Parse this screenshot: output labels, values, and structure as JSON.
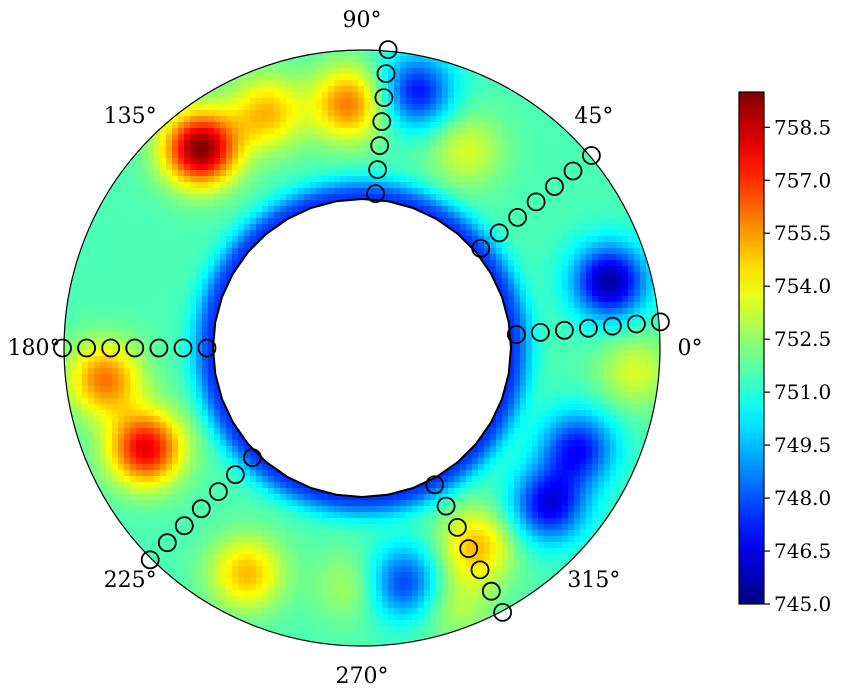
{
  "chart_data": {
    "type": "heatmap",
    "subtype": "polar-annulus-contour",
    "colormap": "jet",
    "title": "",
    "angular_ticks": [
      {
        "angle": 0,
        "label": "0°"
      },
      {
        "angle": 45,
        "label": "45°"
      },
      {
        "angle": 90,
        "label": "90°"
      },
      {
        "angle": 135,
        "label": "135°"
      },
      {
        "angle": 180,
        "label": "180°"
      },
      {
        "angle": 225,
        "label": "225°"
      },
      {
        "angle": 270,
        "label": "270°"
      },
      {
        "angle": 315,
        "label": "315°"
      }
    ],
    "colorbar": {
      "min": 745.0,
      "max": 759.5,
      "ticks": [
        {
          "value": 745.0,
          "label": "745.0"
        },
        {
          "value": 746.5,
          "label": "746.5"
        },
        {
          "value": 748.0,
          "label": "748.0"
        },
        {
          "value": 749.5,
          "label": "749.5"
        },
        {
          "value": 751.0,
          "label": "751.0"
        },
        {
          "value": 752.5,
          "label": "752.5"
        },
        {
          "value": 754.0,
          "label": "754.0"
        },
        {
          "value": 755.5,
          "label": "755.5"
        },
        {
          "value": 757.0,
          "label": "757.0"
        },
        {
          "value": 758.5,
          "label": "758.5"
        }
      ]
    },
    "baseline_value": 751.5,
    "hotspots": [
      {
        "theta": 129,
        "r": 0.86,
        "value": 759.5
      },
      {
        "theta": 205,
        "r": 0.8,
        "value": 758.0
      },
      {
        "theta": 187,
        "r": 0.87,
        "value": 756.0
      },
      {
        "theta": 93,
        "r": 0.82,
        "value": 756.0
      },
      {
        "theta": 112,
        "r": 0.85,
        "value": 755.0
      },
      {
        "theta": 243,
        "r": 0.85,
        "value": 755.0
      },
      {
        "theta": 300,
        "r": 0.77,
        "value": 755.0
      },
      {
        "theta": 62,
        "r": 0.75,
        "value": 753.5
      },
      {
        "theta": 355,
        "r": 0.92,
        "value": 753.5
      },
      {
        "theta": 268,
        "r": 0.8,
        "value": 753.0
      },
      {
        "theta": 290,
        "r": 0.92,
        "value": 753.0
      }
    ],
    "coldspots": [
      {
        "theta": 78,
        "r": 0.88,
        "value": 747.0
      },
      {
        "theta": 15,
        "r": 0.86,
        "value": 745.5
      },
      {
        "theta": 335,
        "r": 0.8,
        "value": 747.0
      },
      {
        "theta": 320,
        "r": 0.82,
        "value": 746.5
      },
      {
        "theta": 280,
        "r": 0.8,
        "value": 747.5
      }
    ],
    "sensor_lines": [
      {
        "angle": 85,
        "count": 7
      },
      {
        "angle": 40,
        "count": 7
      },
      {
        "angle": 5,
        "count": 7
      },
      {
        "angle": 180,
        "count": 7
      },
      {
        "angle": 225,
        "count": 7
      },
      {
        "angle": 298,
        "count": 7
      }
    ],
    "inner_radius_fraction": 0.5,
    "outer_radius_fraction": 1.0
  }
}
